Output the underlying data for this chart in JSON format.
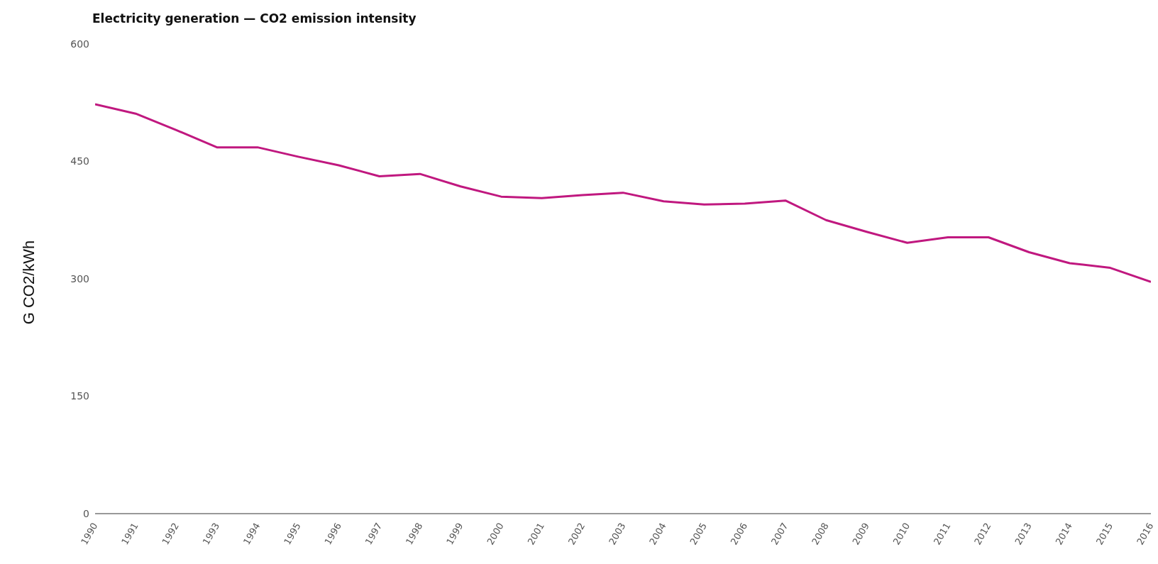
{
  "chart_data": {
    "type": "line",
    "title": "Electricity generation — CO2 emission intensity",
    "ylabel": "G CO2/kWh",
    "categories": [
      "1990",
      "1991",
      "1992",
      "1993",
      "1994",
      "1995",
      "1996",
      "1997",
      "1998",
      "1999",
      "2000",
      "2001",
      "2002",
      "2003",
      "2004",
      "2005",
      "2006",
      "2007",
      "2008",
      "2009",
      "2010",
      "2011",
      "2012",
      "2013",
      "2014",
      "2015",
      "2016"
    ],
    "series": [
      {
        "color": "#c0187f",
        "values": [
          523,
          511,
          490,
          468,
          468,
          456,
          445,
          431,
          434,
          418,
          405,
          403,
          407,
          410,
          399,
          395,
          396,
          400,
          375,
          360,
          346,
          353,
          353,
          334,
          320,
          314,
          296
        ]
      }
    ],
    "ylim": [
      0,
      600
    ],
    "yticks": [
      0,
      150,
      300,
      450,
      600
    ],
    "grid": false,
    "legend": false,
    "marker": "none",
    "line_style": "solid"
  }
}
